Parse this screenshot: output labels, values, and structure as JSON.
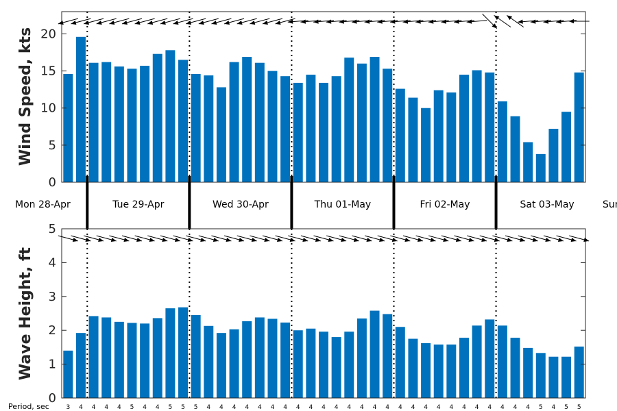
{
  "chart_data": [
    {
      "type": "bar",
      "ylabel": "Wind Speed, kts",
      "ylim": [
        0,
        23
      ],
      "yticks": [
        0,
        5,
        10,
        15,
        20
      ],
      "color": "#0072BD",
      "values": [
        14.6,
        19.6,
        16.1,
        16.2,
        15.6,
        15.3,
        15.7,
        17.3,
        17.8,
        16.5,
        14.6,
        14.4,
        12.8,
        16.2,
        16.9,
        16.1,
        15.0,
        14.3,
        13.4,
        14.5,
        13.4,
        14.3,
        16.8,
        16.0,
        16.9,
        15.3,
        12.6,
        11.4,
        10.0,
        12.4,
        12.1,
        14.5,
        15.1,
        14.8,
        10.9,
        8.9,
        5.4,
        3.8,
        7.2,
        9.5,
        14.8
      ],
      "direction_arrows_deg_from_east": [
        195,
        195,
        195,
        195,
        195,
        195,
        195,
        195,
        195,
        195,
        195,
        195,
        195,
        195,
        195,
        195,
        195,
        195,
        185,
        185,
        185,
        185,
        185,
        185,
        185,
        185,
        185,
        185,
        185,
        185,
        185,
        185,
        185,
        315,
        145,
        145,
        185,
        185,
        185,
        185,
        180
      ]
    },
    {
      "type": "bar",
      "ylabel": "Wave Height, ft",
      "ylim": [
        0,
        5
      ],
      "yticks": [
        0,
        1,
        2,
        3,
        4,
        5
      ],
      "color": "#0072BD",
      "values": [
        1.4,
        1.92,
        2.42,
        2.38,
        2.25,
        2.22,
        2.2,
        2.36,
        2.65,
        2.68,
        2.45,
        2.13,
        1.92,
        2.03,
        2.27,
        2.38,
        2.34,
        2.23,
        2.0,
        2.05,
        1.96,
        1.8,
        1.96,
        2.35,
        2.58,
        2.48,
        2.1,
        1.75,
        1.62,
        1.58,
        1.58,
        1.78,
        2.14,
        2.32,
        2.14,
        1.78,
        1.48,
        1.33,
        1.22,
        1.22,
        1.52
      ],
      "direction_arrows_deg_from_east": [
        -15,
        -15,
        -15,
        -15,
        -15,
        -15,
        -15,
        -15,
        -15,
        -15,
        -15,
        -15,
        -15,
        -15,
        -15,
        -15,
        -15,
        -15,
        -15,
        -15,
        -15,
        -15,
        -15,
        -15,
        -15,
        -15,
        -15,
        -15,
        -15,
        -15,
        -15,
        -15,
        -15,
        -15,
        -15,
        -15,
        -15,
        -15,
        -15,
        -15,
        -15
      ]
    }
  ],
  "day_labels": [
    "Mon 28-Apr",
    "Tue 29-Apr",
    "Wed 30-Apr",
    "Thu 01-May",
    "Fri 02-May",
    "Sat 03-May",
    "Sun"
  ],
  "day_boundary_indices": [
    1.5,
    9.5,
    17.5,
    25.5,
    33.5
  ],
  "period_title": "Period, sec",
  "periods": [
    "3",
    "4",
    "4",
    "4",
    "4",
    "5",
    "4",
    "4",
    "5",
    "5",
    "5",
    "4",
    "4",
    "4",
    "4",
    "4",
    "4",
    "4",
    "4",
    "4",
    "4",
    "4",
    "4",
    "4",
    "4",
    "4",
    "4",
    "4",
    "4",
    "4",
    "4",
    "4",
    "4",
    "4",
    "4",
    "4",
    "4",
    "5",
    "4",
    "5",
    "5"
  ]
}
